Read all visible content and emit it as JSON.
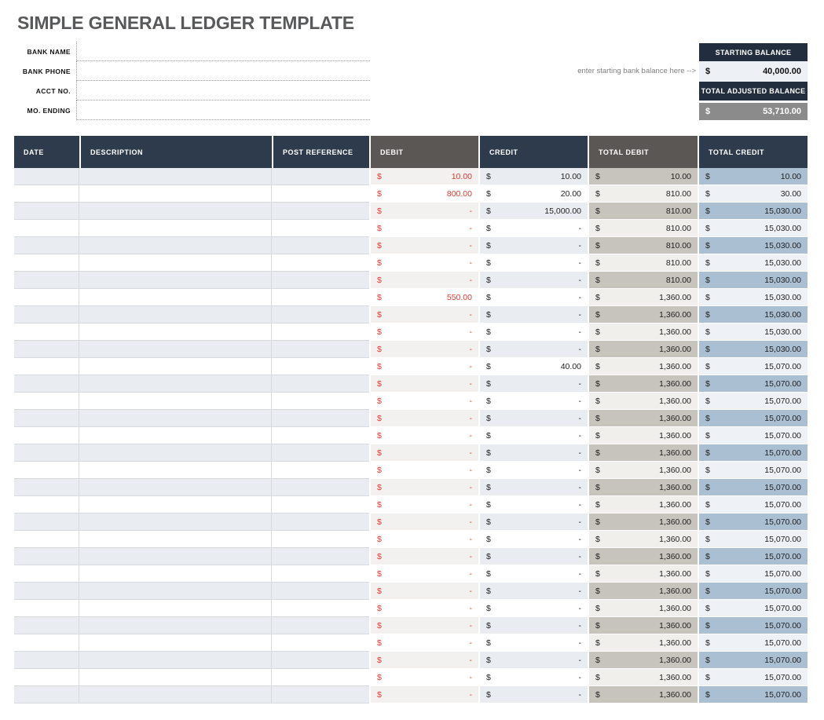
{
  "title": "SIMPLE GENERAL LEDGER TEMPLATE",
  "bank_info": {
    "fields": [
      {
        "label": "BANK NAME",
        "value": ""
      },
      {
        "label": "BANK PHONE",
        "value": ""
      },
      {
        "label": "ACCT NO.",
        "value": ""
      },
      {
        "label": "MO. ENDING",
        "value": ""
      }
    ]
  },
  "balance_panel": {
    "note": "enter starting bank balance here -->",
    "starting_balance": {
      "label": "STARTING BALANCE",
      "currency": "$",
      "value": "40,000.00"
    },
    "total_adjusted_balance": {
      "label": "TOTAL ADJUSTED BALANCE",
      "currency": "$",
      "value": "53,710.00"
    }
  },
  "ledger_table": {
    "currency_symbol": "$",
    "columns": [
      {
        "label": "DATE",
        "header_style": "navy"
      },
      {
        "label": "DESCRIPTION",
        "header_style": "navy"
      },
      {
        "label": "POST REFERENCE",
        "header_style": "navy"
      },
      {
        "label": "DEBIT",
        "header_style": "gray"
      },
      {
        "label": "CREDIT",
        "header_style": "navy"
      },
      {
        "label": "TOTAL DEBIT",
        "header_style": "gray"
      },
      {
        "label": "TOTAL CREDIT",
        "header_style": "navy"
      }
    ],
    "rows": [
      {
        "date": "",
        "description": "",
        "post_reference": "",
        "debit": "10.00",
        "credit": "10.00",
        "total_debit": "10.00",
        "total_credit": "10.00"
      },
      {
        "date": "",
        "description": "",
        "post_reference": "",
        "debit": "800.00",
        "credit": "20.00",
        "total_debit": "810.00",
        "total_credit": "30.00"
      },
      {
        "date": "",
        "description": "",
        "post_reference": "",
        "debit": "-",
        "credit": "15,000.00",
        "total_debit": "810.00",
        "total_credit": "15,030.00"
      },
      {
        "date": "",
        "description": "",
        "post_reference": "",
        "debit": "-",
        "credit": "-",
        "total_debit": "810.00",
        "total_credit": "15,030.00"
      },
      {
        "date": "",
        "description": "",
        "post_reference": "",
        "debit": "-",
        "credit": "-",
        "total_debit": "810.00",
        "total_credit": "15,030.00"
      },
      {
        "date": "",
        "description": "",
        "post_reference": "",
        "debit": "-",
        "credit": "-",
        "total_debit": "810.00",
        "total_credit": "15,030.00"
      },
      {
        "date": "",
        "description": "",
        "post_reference": "",
        "debit": "-",
        "credit": "-",
        "total_debit": "810.00",
        "total_credit": "15,030.00"
      },
      {
        "date": "",
        "description": "",
        "post_reference": "",
        "debit": "550.00",
        "credit": "-",
        "total_debit": "1,360.00",
        "total_credit": "15,030.00"
      },
      {
        "date": "",
        "description": "",
        "post_reference": "",
        "debit": "-",
        "credit": "-",
        "total_debit": "1,360.00",
        "total_credit": "15,030.00"
      },
      {
        "date": "",
        "description": "",
        "post_reference": "",
        "debit": "-",
        "credit": "-",
        "total_debit": "1,360.00",
        "total_credit": "15,030.00"
      },
      {
        "date": "",
        "description": "",
        "post_reference": "",
        "debit": "-",
        "credit": "-",
        "total_debit": "1,360.00",
        "total_credit": "15,030.00"
      },
      {
        "date": "",
        "description": "",
        "post_reference": "",
        "debit": "-",
        "credit": "40.00",
        "total_debit": "1,360.00",
        "total_credit": "15,070.00"
      },
      {
        "date": "",
        "description": "",
        "post_reference": "",
        "debit": "-",
        "credit": "-",
        "total_debit": "1,360.00",
        "total_credit": "15,070.00"
      },
      {
        "date": "",
        "description": "",
        "post_reference": "",
        "debit": "-",
        "credit": "-",
        "total_debit": "1,360.00",
        "total_credit": "15,070.00"
      },
      {
        "date": "",
        "description": "",
        "post_reference": "",
        "debit": "-",
        "credit": "-",
        "total_debit": "1,360.00",
        "total_credit": "15,070.00"
      },
      {
        "date": "",
        "description": "",
        "post_reference": "",
        "debit": "-",
        "credit": "-",
        "total_debit": "1,360.00",
        "total_credit": "15,070.00"
      },
      {
        "date": "",
        "description": "",
        "post_reference": "",
        "debit": "-",
        "credit": "-",
        "total_debit": "1,360.00",
        "total_credit": "15,070.00"
      },
      {
        "date": "",
        "description": "",
        "post_reference": "",
        "debit": "-",
        "credit": "-",
        "total_debit": "1,360.00",
        "total_credit": "15,070.00"
      },
      {
        "date": "",
        "description": "",
        "post_reference": "",
        "debit": "-",
        "credit": "-",
        "total_debit": "1,360.00",
        "total_credit": "15,070.00"
      },
      {
        "date": "",
        "description": "",
        "post_reference": "",
        "debit": "-",
        "credit": "-",
        "total_debit": "1,360.00",
        "total_credit": "15,070.00"
      },
      {
        "date": "",
        "description": "",
        "post_reference": "",
        "debit": "-",
        "credit": "-",
        "total_debit": "1,360.00",
        "total_credit": "15,070.00"
      },
      {
        "date": "",
        "description": "",
        "post_reference": "",
        "debit": "-",
        "credit": "-",
        "total_debit": "1,360.00",
        "total_credit": "15,070.00"
      },
      {
        "date": "",
        "description": "",
        "post_reference": "",
        "debit": "-",
        "credit": "-",
        "total_debit": "1,360.00",
        "total_credit": "15,070.00"
      },
      {
        "date": "",
        "description": "",
        "post_reference": "",
        "debit": "-",
        "credit": "-",
        "total_debit": "1,360.00",
        "total_credit": "15,070.00"
      },
      {
        "date": "",
        "description": "",
        "post_reference": "",
        "debit": "-",
        "credit": "-",
        "total_debit": "1,360.00",
        "total_credit": "15,070.00"
      },
      {
        "date": "",
        "description": "",
        "post_reference": "",
        "debit": "-",
        "credit": "-",
        "total_debit": "1,360.00",
        "total_credit": "15,070.00"
      },
      {
        "date": "",
        "description": "",
        "post_reference": "",
        "debit": "-",
        "credit": "-",
        "total_debit": "1,360.00",
        "total_credit": "15,070.00"
      },
      {
        "date": "",
        "description": "",
        "post_reference": "",
        "debit": "-",
        "credit": "-",
        "total_debit": "1,360.00",
        "total_credit": "15,070.00"
      },
      {
        "date": "",
        "description": "",
        "post_reference": "",
        "debit": "-",
        "credit": "-",
        "total_debit": "1,360.00",
        "total_credit": "15,070.00"
      },
      {
        "date": "",
        "description": "",
        "post_reference": "",
        "debit": "-",
        "credit": "-",
        "total_debit": "1,360.00",
        "total_credit": "15,070.00"
      },
      {
        "date": "",
        "description": "",
        "post_reference": "",
        "debit": "-",
        "credit": "-",
        "total_debit": "1,360.00",
        "total_credit": "15,070.00"
      }
    ]
  },
  "colors": {
    "header_navy": "#2e3b4d",
    "header_gray": "#5a5755",
    "balance_header_navy": "#222e3e",
    "row_shade": "#e9edf2",
    "debit_shade": "#f3f0f0",
    "total_debit_shade": "#c7c4be",
    "total_debit_light": "#f1efeb",
    "total_credit_shade": "#abbfd3",
    "total_credit_light": "#eef2f6",
    "debit_red": "#e23a30",
    "starting_balance_bg": "#edf1f6",
    "adjusted_balance_bg": "#8b8b8b",
    "title_gray": "#58595b"
  }
}
